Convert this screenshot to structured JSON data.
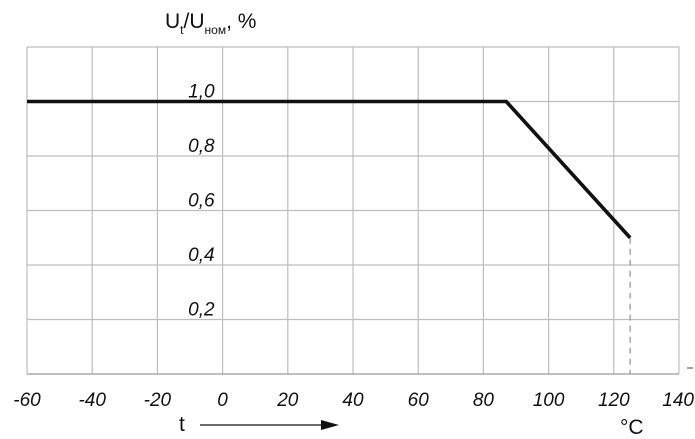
{
  "chart_data": {
    "type": "line",
    "title": "",
    "ylabel": {
      "main": "U",
      "sub1": "t",
      "sep": "/U",
      "sub2": "ном",
      "suffix": ", %"
    },
    "xlabel": "t",
    "x_unit": "°C",
    "xlim": [
      -60,
      140
    ],
    "ylim": [
      0,
      1.2
    ],
    "x_ticks": [
      "-60",
      "-40",
      "-20",
      "0",
      "20",
      "40",
      "60",
      "80",
      "100",
      "120",
      "140"
    ],
    "y_ticks": [
      {
        "value": 0.2,
        "label": "0,2"
      },
      {
        "value": 0.4,
        "label": "0,4"
      },
      {
        "value": 0.6,
        "label": "0,6"
      },
      {
        "value": 0.8,
        "label": "0,8"
      },
      {
        "value": 1.0,
        "label": "1,0"
      }
    ],
    "grid": true,
    "series": [
      {
        "color": "#111111",
        "points": [
          {
            "x": -60,
            "y": 1.0
          },
          {
            "x": 87,
            "y": 1.0
          },
          {
            "x": 125,
            "y": 0.5
          }
        ]
      }
    ],
    "reference_lines": [
      {
        "x": 125,
        "from_y": 0,
        "to_y": 0.5,
        "style": "dashed"
      }
    ]
  }
}
